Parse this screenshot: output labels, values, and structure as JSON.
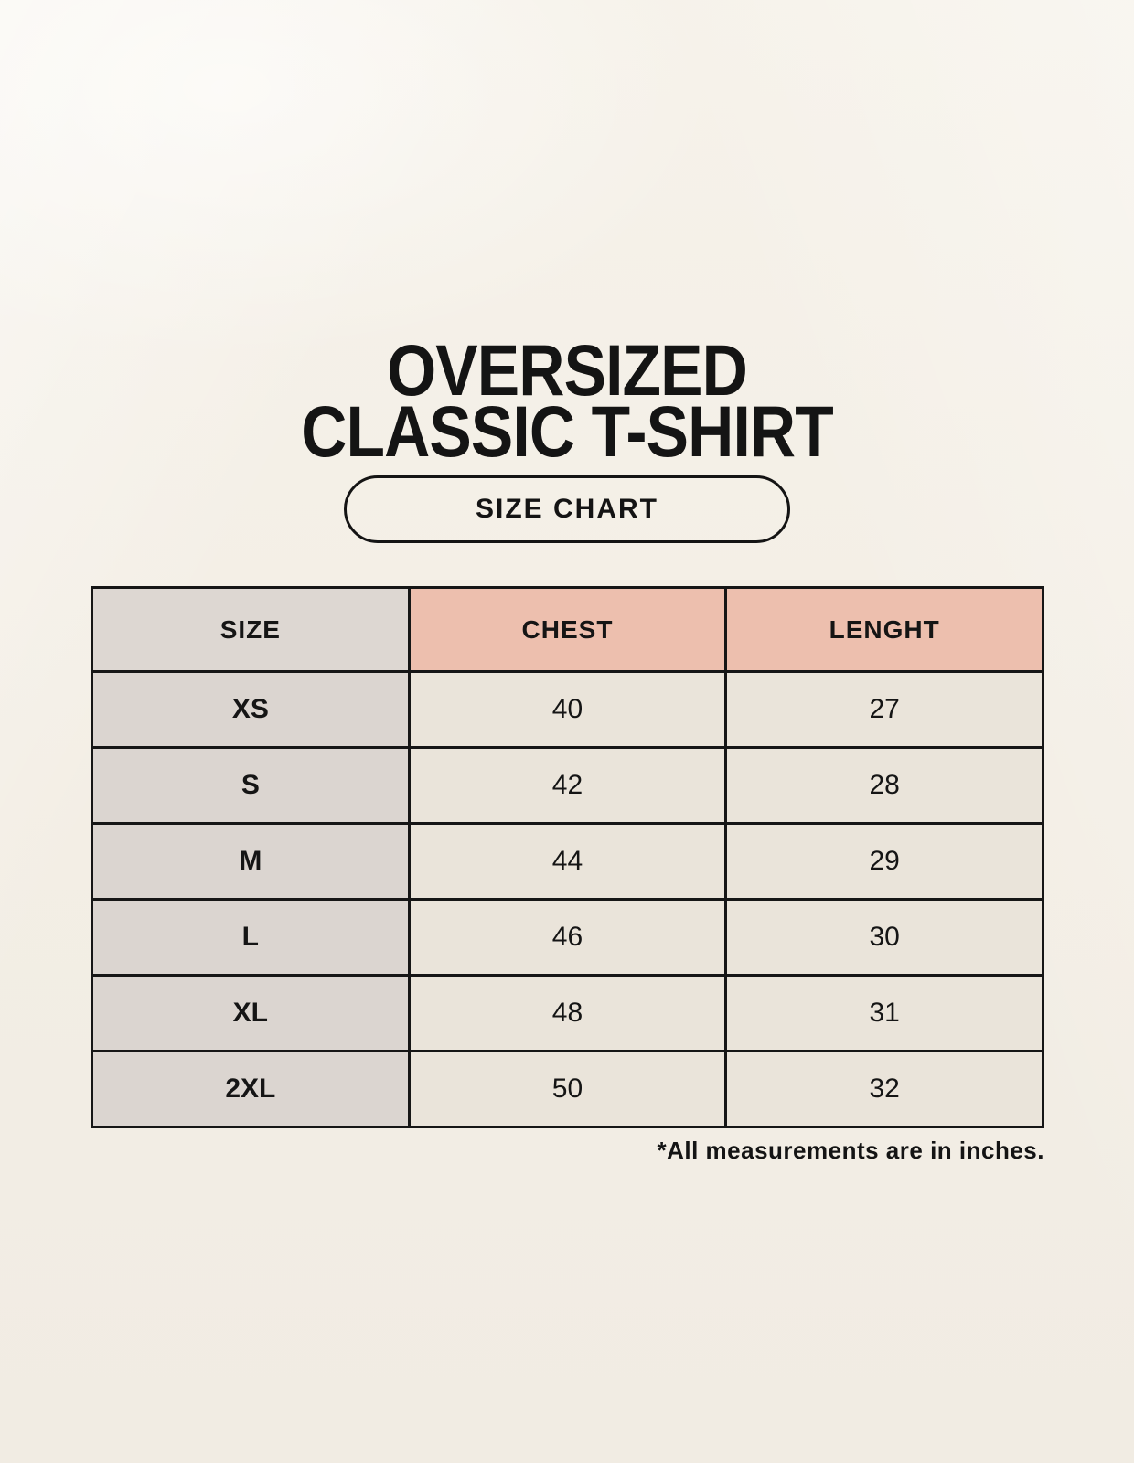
{
  "title": {
    "line1": "OVERSIZED",
    "line2": "CLASSIC T-SHIRT"
  },
  "size_chart_button": {
    "label": "SIZE CHART"
  },
  "table": {
    "headers": [
      "SIZE",
      "CHEST",
      "LENGHT"
    ],
    "rows": [
      {
        "size": "XS",
        "chest": "40",
        "length": "27"
      },
      {
        "size": "S",
        "chest": "42",
        "length": "28"
      },
      {
        "size": "M",
        "chest": "44",
        "length": "29"
      },
      {
        "size": "L",
        "chest": "46",
        "length": "30"
      },
      {
        "size": "XL",
        "chest": "48",
        "length": "31"
      },
      {
        "size": "2XL",
        "chest": "50",
        "length": "32"
      }
    ]
  },
  "footnote": "*All measurements are in inches.",
  "colors": {
    "background": "#f4efe6",
    "header_size_bg": "#ddd7d2",
    "header_measure_bg": "#edbfae",
    "size_column_bg": "#dbd5d0",
    "value_cell_bg": "#eae4da",
    "border": "#161616",
    "text": "#141414"
  },
  "chart_data": {
    "type": "table",
    "title": "OVERSIZED CLASSIC T-SHIRT — SIZE CHART",
    "columns": [
      "SIZE",
      "CHEST",
      "LENGHT"
    ],
    "rows": [
      [
        "XS",
        40,
        27
      ],
      [
        "S",
        42,
        28
      ],
      [
        "M",
        44,
        29
      ],
      [
        "L",
        46,
        30
      ],
      [
        "XL",
        48,
        31
      ],
      [
        "2XL",
        50,
        32
      ]
    ],
    "units": "inches",
    "note": "*All measurements are in inches."
  }
}
